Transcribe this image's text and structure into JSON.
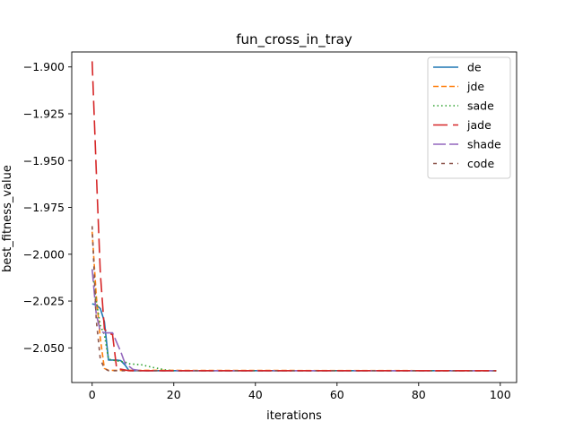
{
  "chart_data": {
    "type": "line",
    "title": "fun_cross_in_tray",
    "xlabel": "iterations",
    "ylabel": "best_fitness_value",
    "xlim": [
      -5,
      104
    ],
    "ylim": [
      -2.0685,
      -1.892
    ],
    "xticks": [
      0,
      20,
      40,
      60,
      80,
      100
    ],
    "yticks": [
      -1.9,
      -1.925,
      -1.95,
      -1.975,
      -2.0,
      -2.025,
      -2.05
    ],
    "ytick_labels": [
      "−1.900",
      "−1.925",
      "−1.950",
      "−1.975",
      "−2.000",
      "−2.025",
      "−2.050"
    ],
    "xtick_labels": [
      "0",
      "20",
      "40",
      "60",
      "80",
      "100"
    ],
    "legend_position": "top-right",
    "grid": false,
    "x_end": 99,
    "series": [
      {
        "name": "de",
        "color": "#1f77b4",
        "dash": "solid",
        "points": [
          [
            0,
            -2.0265
          ],
          [
            1,
            -2.027
          ],
          [
            2,
            -2.029
          ],
          [
            3,
            -2.036
          ],
          [
            4,
            -2.0565
          ],
          [
            5,
            -2.0565
          ],
          [
            6,
            -2.0565
          ],
          [
            7,
            -2.0568
          ],
          [
            8,
            -2.059
          ],
          [
            9,
            -2.062
          ],
          [
            10,
            -2.0622
          ],
          [
            99,
            -2.0622
          ]
        ]
      },
      {
        "name": "jde",
        "color": "#ff7f0e",
        "dash": "6,3",
        "points": [
          [
            0,
            -1.988
          ],
          [
            1,
            -2.022
          ],
          [
            2,
            -2.045
          ],
          [
            3,
            -2.061
          ],
          [
            4,
            -2.062
          ],
          [
            99,
            -2.0622
          ]
        ]
      },
      {
        "name": "sade",
        "color": "#2ca02c",
        "dash": "1.5,3",
        "points": [
          [
            0,
            -2.008
          ],
          [
            1,
            -2.025
          ],
          [
            2,
            -2.038
          ],
          [
            3,
            -2.043
          ],
          [
            4,
            -2.056
          ],
          [
            6,
            -2.057
          ],
          [
            8,
            -2.0575
          ],
          [
            9,
            -2.0585
          ],
          [
            12,
            -2.059
          ],
          [
            15,
            -2.0605
          ],
          [
            18,
            -2.0618
          ],
          [
            20,
            -2.0622
          ],
          [
            99,
            -2.0622
          ]
        ]
      },
      {
        "name": "jade",
        "color": "#d62728",
        "dash": "16,6",
        "points": [
          [
            0,
            -1.897
          ],
          [
            1,
            -1.955
          ],
          [
            2,
            -2.01
          ],
          [
            3,
            -2.04
          ],
          [
            4,
            -2.042
          ],
          [
            5,
            -2.043
          ],
          [
            6,
            -2.061
          ],
          [
            9,
            -2.0622
          ],
          [
            99,
            -2.0622
          ]
        ]
      },
      {
        "name": "shade",
        "color": "#9467bd",
        "dash": "14,4",
        "points": [
          [
            0,
            -2.008
          ],
          [
            1,
            -2.032
          ],
          [
            2,
            -2.041
          ],
          [
            3,
            -2.042
          ],
          [
            5,
            -2.042
          ],
          [
            7,
            -2.052
          ],
          [
            8,
            -2.058
          ],
          [
            10,
            -2.0615
          ],
          [
            12,
            -2.0622
          ],
          [
            99,
            -2.0622
          ]
        ]
      },
      {
        "name": "code",
        "color": "#8c564b",
        "dash": "4,5",
        "points": [
          [
            0,
            -1.985
          ],
          [
            1,
            -2.035
          ],
          [
            2,
            -2.056
          ],
          [
            3,
            -2.061
          ],
          [
            4,
            -2.0622
          ],
          [
            99,
            -2.0622
          ]
        ]
      }
    ]
  }
}
